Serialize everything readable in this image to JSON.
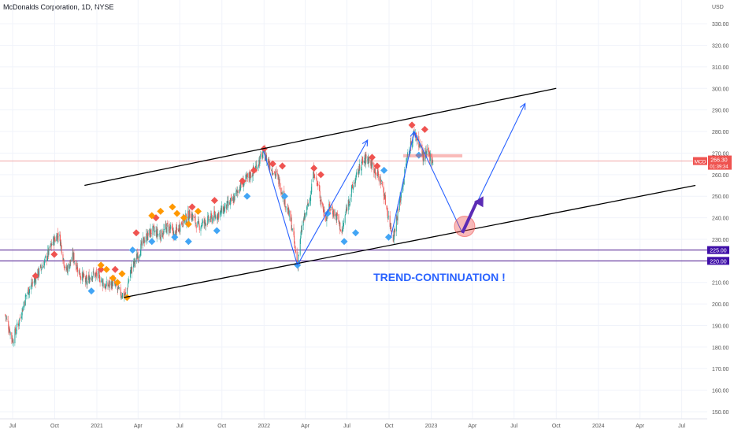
{
  "header": {
    "title": "McDonalds Corporation, 1D, NYSE"
  },
  "chart_data": {
    "type": "candlestick",
    "symbol": "MCD",
    "currency": "USD",
    "last_price": "266.30",
    "countdown": "01:39:34",
    "ylim": [
      148,
      337
    ],
    "y_ticks": [
      "330.00",
      "320.00",
      "310.00",
      "300.00",
      "290.00",
      "280.00",
      "270.00",
      "260.00",
      "250.00",
      "240.00",
      "230.00",
      "220.00",
      "210.00",
      "200.00",
      "190.00",
      "180.00",
      "170.00",
      "160.00",
      "150.00"
    ],
    "x_ticks": [
      "Jul",
      "Oct",
      "2021",
      "Apr",
      "Jul",
      "Oct",
      "2022",
      "Apr",
      "Jul",
      "Oct",
      "2023",
      "Apr",
      "Jul",
      "Oct",
      "2024",
      "Apr",
      "Jul"
    ],
    "horizontal_levels": [
      {
        "label": "225.00",
        "value": 225,
        "color": "#4a148c"
      },
      {
        "label": "220.00",
        "value": 220,
        "color": "#4a148c"
      }
    ],
    "annotation": "TREND-CONTINUATION !",
    "colors": {
      "up": "#26a69a",
      "down": "#ef5350",
      "channel": "#000000",
      "arrows": "#2962ff",
      "projection": "#5b2bb5"
    },
    "price_path": [
      [
        "2020-06-15",
        195
      ],
      [
        "2020-07-01",
        183
      ],
      [
        "2020-07-15",
        192
      ],
      [
        "2020-08-01",
        205
      ],
      [
        "2020-08-20",
        212
      ],
      [
        "2020-09-10",
        220
      ],
      [
        "2020-09-25",
        228
      ],
      [
        "2020-10-10",
        233
      ],
      [
        "2020-10-25",
        215
      ],
      [
        "2020-11-10",
        222
      ],
      [
        "2020-11-25",
        214
      ],
      [
        "2020-12-10",
        210
      ],
      [
        "2020-12-20",
        214
      ],
      [
        "2021-01-05",
        213
      ],
      [
        "2021-01-20",
        208
      ],
      [
        "2021-02-05",
        210
      ],
      [
        "2021-02-20",
        205
      ],
      [
        "2021-03-05",
        204
      ],
      [
        "2021-03-15",
        215
      ],
      [
        "2021-03-30",
        222
      ],
      [
        "2021-04-15",
        230
      ],
      [
        "2021-05-01",
        234
      ],
      [
        "2021-05-20",
        232
      ],
      [
        "2021-06-05",
        236
      ],
      [
        "2021-06-20",
        232
      ],
      [
        "2021-07-05",
        238
      ],
      [
        "2021-07-25",
        242
      ],
      [
        "2021-08-10",
        236
      ],
      [
        "2021-08-25",
        238
      ],
      [
        "2021-09-10",
        240
      ],
      [
        "2021-09-25",
        242
      ],
      [
        "2021-10-10",
        245
      ],
      [
        "2021-10-25",
        248
      ],
      [
        "2021-11-10",
        255
      ],
      [
        "2021-11-25",
        258
      ],
      [
        "2021-12-10",
        262
      ],
      [
        "2021-12-31",
        270
      ],
      [
        "2022-01-15",
        264
      ],
      [
        "2022-02-01",
        258
      ],
      [
        "2022-02-15",
        248
      ],
      [
        "2022-03-01",
        238
      ],
      [
        "2022-03-15",
        218
      ],
      [
        "2022-03-25",
        236
      ],
      [
        "2022-04-10",
        248
      ],
      [
        "2022-04-20",
        262
      ],
      [
        "2022-05-01",
        252
      ],
      [
        "2022-05-15",
        240
      ],
      [
        "2022-05-25",
        245
      ],
      [
        "2022-06-10",
        240
      ],
      [
        "2022-06-20",
        233
      ],
      [
        "2022-07-01",
        245
      ],
      [
        "2022-07-15",
        255
      ],
      [
        "2022-08-01",
        265
      ],
      [
        "2022-08-15",
        268
      ],
      [
        "2022-09-01",
        262
      ],
      [
        "2022-09-15",
        256
      ],
      [
        "2022-09-30",
        240
      ],
      [
        "2022-10-10",
        231
      ],
      [
        "2022-10-25",
        248
      ],
      [
        "2022-11-10",
        268
      ],
      [
        "2022-11-25",
        280
      ],
      [
        "2022-12-05",
        275
      ],
      [
        "2022-12-15",
        268
      ],
      [
        "2022-12-25",
        270
      ],
      [
        "2023-01-05",
        266
      ]
    ],
    "channel_upper": [
      [
        "2020-12-05",
        255
      ],
      [
        "2023-10-01",
        300
      ]
    ],
    "channel_lower": [
      [
        "2021-03-01",
        203
      ],
      [
        "2024-07-31",
        255
      ]
    ],
    "arrows": [
      [
        [
          "2021-12-31",
          271
        ],
        [
          "2022-03-15",
          218
        ]
      ],
      [
        [
          "2022-03-15",
          218
        ],
        [
          "2022-08-15",
          276
        ]
      ],
      [
        [
          "2022-10-05",
          231
        ],
        [
          "2022-11-25",
          280
        ]
      ],
      [
        [
          "2022-11-25",
          280
        ],
        [
          "2023-03-10",
          233
        ]
      ],
      [
        [
          "2023-03-10",
          233
        ],
        [
          "2023-07-25",
          293
        ]
      ]
    ],
    "projection_arrow": [
      [
        "2023-03-10",
        233
      ],
      [
        "2023-04-25",
        250
      ]
    ],
    "pivot_circle": [
      "2023-03-15",
      236
    ],
    "resistance_box": [
      [
        "2022-11-01",
        269.5
      ],
      [
        "2023-03-10",
        268
      ]
    ],
    "markers_red": [
      [
        "2020-08-20",
        213
      ],
      [
        "2020-09-30",
        223
      ],
      [
        "2021-01-10",
        216
      ],
      [
        "2021-02-10",
        216
      ],
      [
        "2021-03-28",
        233
      ],
      [
        "2021-05-10",
        240
      ],
      [
        "2021-07-28",
        245
      ],
      [
        "2021-09-15",
        248
      ],
      [
        "2021-11-15",
        257
      ],
      [
        "2021-12-10",
        262
      ],
      [
        "2022-01-01",
        272
      ],
      [
        "2022-01-20",
        265
      ],
      [
        "2022-02-10",
        264
      ],
      [
        "2022-04-20",
        263
      ],
      [
        "2022-05-05",
        260
      ],
      [
        "2022-08-25",
        268
      ],
      [
        "2022-09-05",
        264
      ],
      [
        "2022-11-20",
        283
      ],
      [
        "2022-12-18",
        281
      ]
    ],
    "markers_orange": [
      [
        "2021-01-10",
        218
      ],
      [
        "2021-01-22",
        216
      ],
      [
        "2021-02-05",
        212
      ],
      [
        "2021-02-15",
        210
      ],
      [
        "2021-02-25",
        214
      ],
      [
        "2021-03-08",
        203
      ],
      [
        "2021-05-01",
        241
      ],
      [
        "2021-05-20",
        243
      ],
      [
        "2021-06-15",
        245
      ],
      [
        "2021-06-25",
        242
      ],
      [
        "2021-07-10",
        240
      ],
      [
        "2021-07-20",
        237
      ],
      [
        "2021-08-10",
        243
      ]
    ],
    "markers_blue": [
      [
        "2020-12-20",
        206
      ],
      [
        "2021-03-20",
        225
      ],
      [
        "2021-05-01",
        229
      ],
      [
        "2021-06-20",
        231
      ],
      [
        "2021-07-20",
        229
      ],
      [
        "2021-09-20",
        234
      ],
      [
        "2021-11-25",
        250
      ],
      [
        "2022-02-15",
        250
      ],
      [
        "2022-03-15",
        218
      ],
      [
        "2022-05-20",
        242
      ],
      [
        "2022-06-25",
        229
      ],
      [
        "2022-07-20",
        233
      ],
      [
        "2022-09-20",
        262
      ],
      [
        "2022-09-30",
        231
      ],
      [
        "2022-12-05",
        269
      ]
    ]
  }
}
